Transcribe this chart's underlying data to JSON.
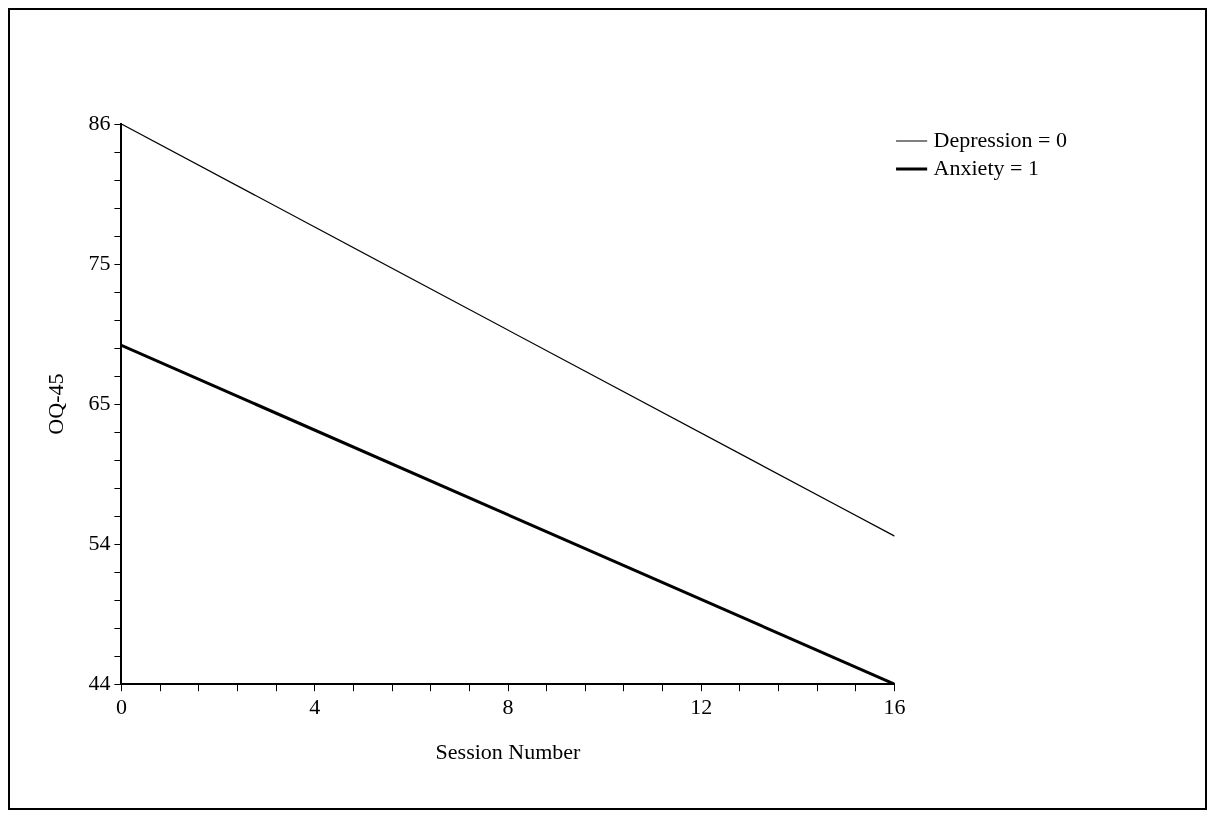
{
  "chart_data": {
    "type": "line",
    "xlabel": "Session Number",
    "ylabel": "OQ-45",
    "x": [
      0,
      16
    ],
    "series": [
      {
        "name": "Depression = 0",
        "color": "#000000",
        "values": [
          86,
          55.1
        ]
      },
      {
        "name": "Anxiety = 1",
        "color": "#000000",
        "values": [
          69.4,
          44
        ]
      }
    ],
    "xlim": [
      0,
      16
    ],
    "ylim": [
      44,
      86
    ],
    "xticks": [
      0,
      {
        "value": 0.8,
        "label": null
      },
      {
        "value": 1.6,
        "label": null
      },
      {
        "value": 2.4,
        "label": null
      },
      {
        "value": 3.2,
        "label": null
      },
      4,
      {
        "value": 4.8,
        "label": null
      },
      {
        "value": 5.6,
        "label": null
      },
      {
        "value": 6.4,
        "label": null
      },
      {
        "value": 7.2,
        "label": null
      },
      8,
      {
        "value": 8.8,
        "label": null
      },
      {
        "value": 9.6,
        "label": null
      },
      {
        "value": 10.4,
        "label": null
      },
      {
        "value": 11.2,
        "label": null
      },
      12,
      {
        "value": 12.8,
        "label": null
      },
      {
        "value": 13.6,
        "label": null
      },
      {
        "value": 14.4,
        "label": null
      },
      {
        "value": 15.2,
        "label": null
      },
      16
    ],
    "yticks": [
      44,
      {
        "value": 46.1,
        "label": null
      },
      {
        "value": 48.2,
        "label": null
      },
      {
        "value": 50.3,
        "label": null
      },
      {
        "value": 52.4,
        "label": null
      },
      {
        "value": 54.5,
        "label": "54"
      },
      {
        "value": 56.6,
        "label": null
      },
      {
        "value": 58.7,
        "label": null
      },
      {
        "value": 60.8,
        "label": null
      },
      {
        "value": 62.9,
        "label": null
      },
      65,
      {
        "value": 67.1,
        "label": null
      },
      {
        "value": 69.2,
        "label": null
      },
      {
        "value": 71.3,
        "label": null
      },
      {
        "value": 73.4,
        "label": null
      },
      {
        "value": 75.5,
        "label": "75"
      },
      {
        "value": 77.6,
        "label": null
      },
      {
        "value": 79.7,
        "label": null
      },
      {
        "value": 81.8,
        "label": null
      },
      {
        "value": 83.9,
        "label": null
      },
      86
    ],
    "grid": false,
    "legend": "top right",
    "marker": "none",
    "line_style": "solid"
  }
}
